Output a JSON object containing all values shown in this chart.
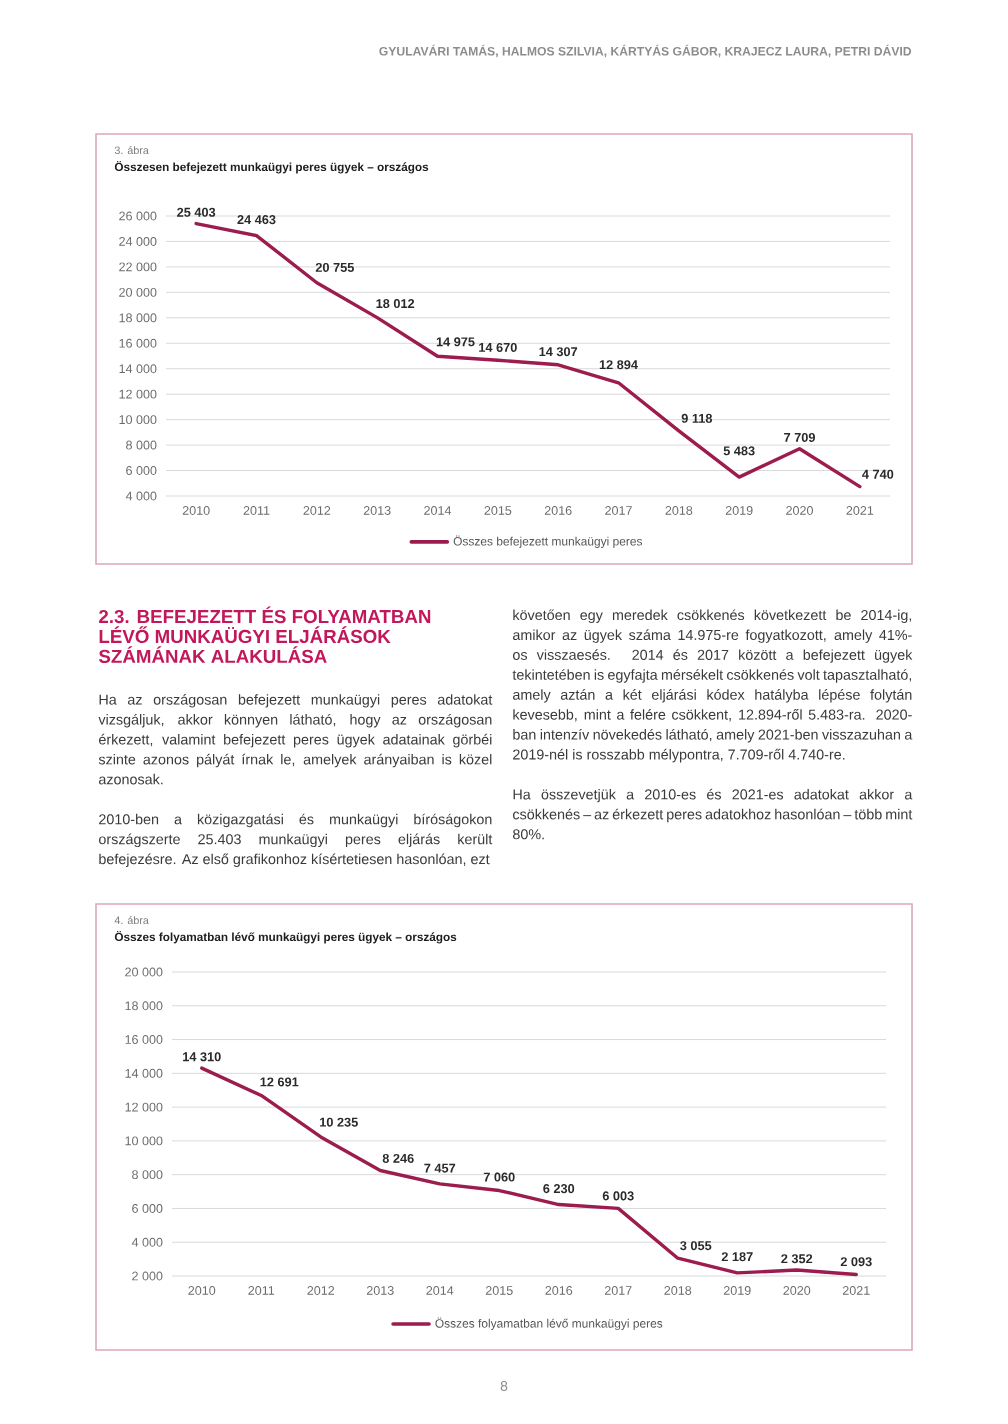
{
  "chart_data": [
    {
      "type": "line",
      "subtitle": "3. ábra",
      "title": "Összesen befejezett munkaügyi peres ügyek – országos",
      "annotations": [
        "GYULAVÁRI TAMÁS, HALMOS SZILVIA, KÁRTYÁS GÁBOR, KRAJECZ LAURA, PETRI DÁVID"
      ],
      "categories": [
        "2010",
        "2011",
        "2012",
        "2013",
        "2014",
        "2015",
        "2016",
        "2017",
        "2018",
        "2019",
        "2020",
        "2021"
      ],
      "series": [
        {
          "name": "Összes befejezett munkaügyi peres",
          "color": "#9c1c4e",
          "values": [
            25403,
            24463,
            20755,
            18012,
            14975,
            14670,
            14307,
            12894,
            9118,
            5483,
            7709,
            4740
          ],
          "value_labels": [
            "25 403",
            "24 463",
            "20 755",
            "18 012",
            "14 975",
            "14 670",
            "14 307",
            "12 894",
            "9 118",
            "5 483",
            "7 709",
            "4 740"
          ]
        }
      ],
      "ylim": [
        4000,
        26000
      ],
      "yticks": [
        {
          "value": 4000,
          "label": "4 000"
        },
        {
          "value": 6000,
          "label": "6 000"
        },
        {
          "value": 8000,
          "label": "8 000"
        },
        {
          "value": 10000,
          "label": "10 000"
        },
        {
          "value": 12000,
          "label": "12 000"
        },
        {
          "value": 14000,
          "label": "14 000"
        },
        {
          "value": 16000,
          "label": "16 000"
        },
        {
          "value": 18000,
          "label": "18 000"
        },
        {
          "value": 20000,
          "label": "20 000"
        },
        {
          "value": 22000,
          "label": "22 000"
        },
        {
          "value": 24000,
          "label": "24 000"
        },
        {
          "value": 26000,
          "label": "26 000"
        }
      ],
      "grid": "y",
      "legend": "bottom"
    },
    {
      "type": "other",
      "title": "2.3. BEFEJEZETT ÉS FOLYAMATBAN LÉVŐ MUNKAÜGYI ELJÁRÁSOK SZÁMÁNAK ALAKULÁSA",
      "annotations": [
        "Ha az országosan befejezett munkaügyi peres adatokat vizsgáljuk, akkor könnyen látható, hogy az országosan érkezett, valamint befejezett peres ügyek adatainak görbéi szinte azonos pályát írnak le, amelyek arányaiban is közel azonosak.",
        "2010-ben a közigazgatási és munkaügyi bíróságokon országszerte 25.403 munkaügyi peres eljárás került befejezésre. Az első grafikonhoz kísértetiesen hasonlóan, ezt",
        "követően egy meredek csökkenés következett be 2014-ig, amikor az ügyek száma 14.975-re fogyatkozott, amely 41%-os visszaesés. 2014 és 2017 között a befejezett ügyek tekintetében is egyfajta mérsékelt csökkenés volt tapasztalható, amely aztán a két eljárási kódex hatályba lépése folytán kevesebb, mint a felére csökkent, 12.894-ről 5.483-ra. 2020-ban intenzív növekedés látható, amely 2021-ben visszazuhan a 2019-nél is rosszabb mélypontra, 7.709-ről 4.740-re.",
        "Ha összevetjük a 2010-es és 2021-es adatokat akkor a csökkenés – az érkezett peres adatokhoz hasonlóan – több mint 80%."
      ]
    },
    {
      "type": "line",
      "subtitle": "4. ábra",
      "title": "Összes folyamatban lévő munkaügyi peres ügyek – országos",
      "annotations": [
        "8"
      ],
      "categories": [
        "2010",
        "2011",
        "2012",
        "2013",
        "2014",
        "2015",
        "2016",
        "2017",
        "2018",
        "2019",
        "2020",
        "2021"
      ],
      "series": [
        {
          "name": "Összes folyamatban lévő munkaügyi peres",
          "color": "#9c1c4e",
          "values": [
            14310,
            12691,
            10235,
            8246,
            7457,
            7060,
            6230,
            6003,
            3055,
            2187,
            2352,
            2093
          ],
          "value_labels": [
            "14 310",
            "12 691",
            "10 235",
            "8 246",
            "7 457",
            "7 060",
            "6 230",
            "6 003",
            "3 055",
            "2 187",
            "2 352",
            "2 093"
          ]
        }
      ],
      "ylim": [
        2000,
        20000
      ],
      "yticks": [
        {
          "value": 2000,
          "label": "2 000"
        },
        {
          "value": 4000,
          "label": "4 000"
        },
        {
          "value": 6000,
          "label": "6 000"
        },
        {
          "value": 8000,
          "label": "8 000"
        },
        {
          "value": 10000,
          "label": "10 000"
        },
        {
          "value": 12000,
          "label": "12 000"
        },
        {
          "value": 14000,
          "label": "14 000"
        },
        {
          "value": 16000,
          "label": "16 000"
        },
        {
          "value": 18000,
          "label": "18 000"
        },
        {
          "value": 20000,
          "label": "20 000"
        }
      ],
      "grid": "y",
      "legend": "bottom"
    }
  ]
}
